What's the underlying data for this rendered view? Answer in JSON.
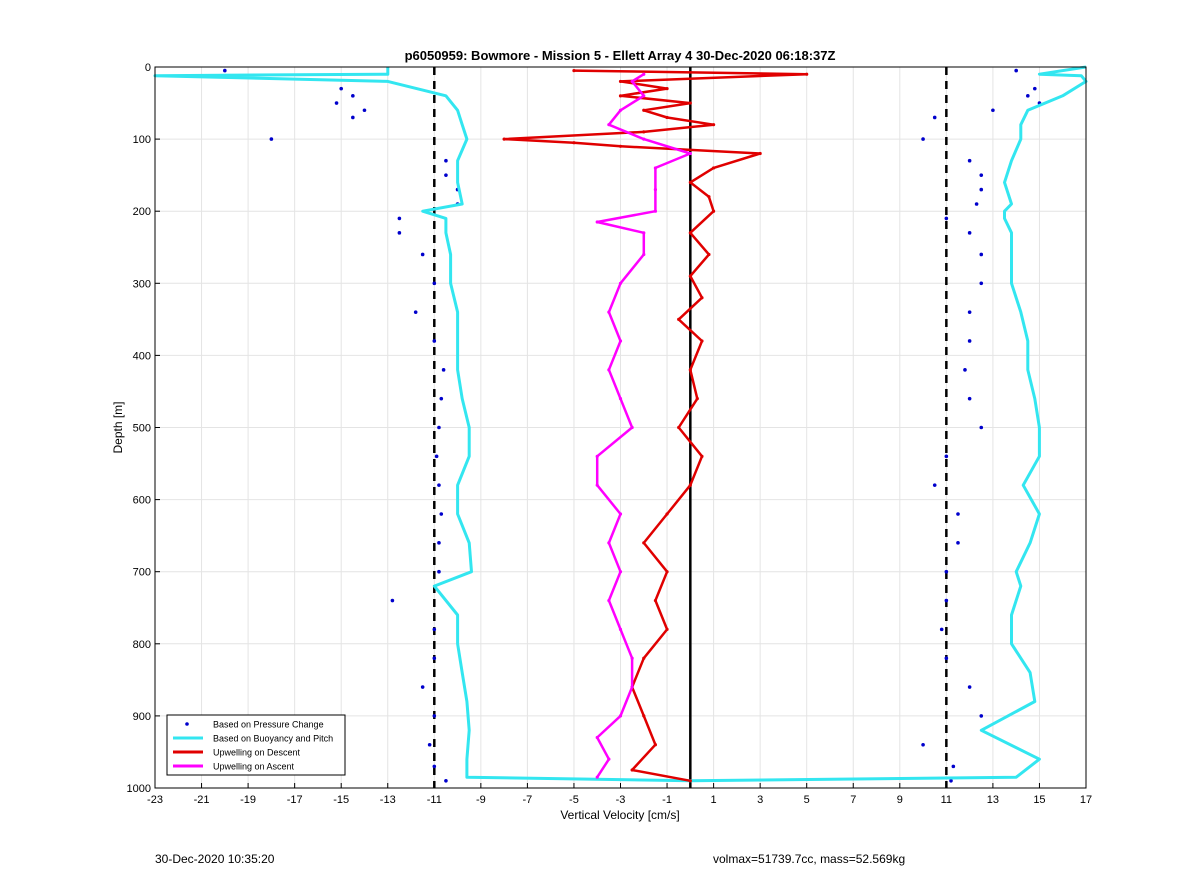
{
  "chart_data": {
    "type": "scatter",
    "title": "p6050959: Bowmore - Mission 5 - Ellett Array 4 30-Dec-2020 06:18:37Z",
    "xlabel": "Vertical Velocity [cm/s]",
    "ylabel": "Depth [m]",
    "xlim": [
      -23,
      17
    ],
    "ylim": [
      0,
      1000
    ],
    "y_reversed": true,
    "grid": true,
    "xticks": [
      -23,
      -21,
      -19,
      -17,
      -15,
      -13,
      -11,
      -9,
      -7,
      -5,
      -3,
      -1,
      1,
      3,
      5,
      7,
      9,
      11,
      13,
      15,
      17
    ],
    "yticks": [
      0,
      100,
      200,
      300,
      400,
      500,
      600,
      700,
      800,
      900,
      1000
    ],
    "legend_position": "bottom-left",
    "reference_lines": [
      {
        "x": -11,
        "style": "dashed",
        "color": "#000000"
      },
      {
        "x": 11,
        "style": "dashed",
        "color": "#000000"
      },
      {
        "x": 0,
        "style": "solid",
        "color": "#000000"
      }
    ],
    "series": [
      {
        "name": "Based on Pressure Change",
        "color": "#0000cc",
        "marker": "dot",
        "depth": [
          5,
          30,
          40,
          50,
          60,
          70,
          100,
          130,
          150,
          170,
          190,
          210,
          230,
          260,
          300,
          340,
          380,
          420,
          460,
          500,
          540,
          580,
          620,
          660,
          700,
          740,
          780,
          820,
          860,
          900,
          940,
          970,
          990
        ],
        "left_branch_x": [
          -20,
          -15,
          -14.5,
          -15.2,
          -14,
          -14.5,
          -18,
          -10.5,
          -10.5,
          -10,
          -10,
          -12.5,
          -12.5,
          -11.5,
          -11,
          -11.8,
          -11,
          -10.6,
          -10.7,
          -10.8,
          -10.9,
          -10.8,
          -10.7,
          -10.8,
          -10.8,
          -12.8,
          -11,
          -11,
          -11.5,
          -11,
          -11.2,
          -11,
          -10.5
        ],
        "right_branch_x": [
          14,
          14.8,
          14.5,
          15,
          13,
          10.5,
          10,
          12,
          12.5,
          12.5,
          12.3,
          11,
          12,
          12.5,
          12.5,
          12,
          12,
          11.8,
          12,
          12.5,
          11,
          10.5,
          11.5,
          11.5,
          11,
          11,
          10.8,
          11,
          12,
          12.5,
          10,
          11.3,
          11.2
        ]
      },
      {
        "name": "Based on Buoyancy and Pitch",
        "color": "#33e6f0",
        "marker": "line",
        "depth": [
          0,
          10,
          12,
          20,
          40,
          60,
          80,
          100,
          130,
          160,
          190,
          200,
          210,
          230,
          260,
          300,
          340,
          380,
          420,
          460,
          500,
          540,
          580,
          620,
          660,
          700,
          720,
          760,
          800,
          840,
          880,
          920,
          960,
          985,
          990
        ],
        "left_branch_x": [
          -13,
          -13,
          -23,
          -13,
          -10.5,
          -10,
          -9.8,
          -9.6,
          -10,
          -10,
          -9.8,
          -11.5,
          -10.5,
          -10.5,
          -10.3,
          -10.3,
          -10,
          -10,
          -10,
          -9.8,
          -9.5,
          -9.5,
          -10,
          -10,
          -9.5,
          -9.4,
          -11,
          -10,
          -10,
          -9.8,
          -9.6,
          -9.5,
          -9.6,
          -9.6,
          0
        ],
        "right_branch_x": [
          17,
          15,
          16.8,
          17,
          16,
          14.5,
          14.2,
          14.2,
          13.8,
          13.5,
          13.8,
          13.5,
          13.5,
          13.8,
          13.8,
          13.8,
          14.2,
          14.5,
          14.5,
          14.8,
          15,
          15,
          14.3,
          15,
          14.6,
          14,
          14.2,
          13.8,
          13.8,
          14.6,
          14.8,
          12.5,
          15,
          14,
          0
        ]
      },
      {
        "name": "Upwelling on Descent",
        "color": "#e00000",
        "marker": "line",
        "depth": [
          5,
          10,
          20,
          30,
          40,
          50,
          60,
          70,
          80,
          90,
          100,
          105,
          110,
          120,
          140,
          160,
          180,
          200,
          230,
          260,
          290,
          320,
          350,
          380,
          420,
          460,
          500,
          540,
          580,
          620,
          660,
          700,
          740,
          780,
          820,
          860,
          900,
          940,
          975,
          990
        ],
        "x": [
          -5,
          5,
          -3,
          -1,
          -3,
          0,
          -2,
          -1,
          1,
          -2,
          -8,
          -5,
          -3,
          3,
          1,
          0,
          0.8,
          1,
          0,
          0.8,
          0,
          0.5,
          -0.5,
          0.5,
          0,
          0.3,
          -0.5,
          0.5,
          0,
          -1,
          -2,
          -1,
          -1.5,
          -1,
          -2,
          -2.5,
          -2,
          -1.5,
          -2.5,
          0
        ]
      },
      {
        "name": "Upwelling on Ascent",
        "color": "#ff00ff",
        "marker": "line",
        "depth": [
          10,
          20,
          40,
          60,
          80,
          100,
          120,
          140,
          170,
          200,
          215,
          230,
          260,
          300,
          340,
          380,
          420,
          460,
          500,
          540,
          580,
          620,
          660,
          700,
          740,
          780,
          820,
          860,
          900,
          930,
          960,
          985
        ],
        "x": [
          -2,
          -2.5,
          -2,
          -3,
          -3.5,
          -2,
          0,
          -1.5,
          -1.5,
          -1.5,
          -4,
          -2,
          -2,
          -3,
          -3.5,
          -3,
          -3.5,
          -3,
          -2.5,
          -4,
          -4,
          -3,
          -3.5,
          -3,
          -3.5,
          -3,
          -2.5,
          -2.5,
          -3,
          -4,
          -3.5,
          -4
        ]
      }
    ]
  },
  "footer": {
    "timestamp": "30-Dec-2020 10:35:20",
    "info": "volmax=51739.7cc, mass=52.569kg"
  }
}
